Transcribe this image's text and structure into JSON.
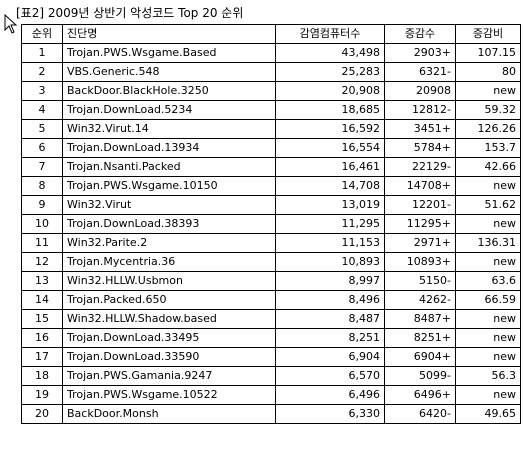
{
  "caption": "[표2] 2009년 상반기 악성코드 Top 20 순위",
  "table": {
    "headers": {
      "rank": "순위",
      "name": "진단명",
      "infected_pcs": "감염컴퓨터수",
      "change": "증감수",
      "ratio": "증감비"
    },
    "rows": [
      {
        "rank": "1",
        "name": "Trojan.PWS.Wsgame.Based",
        "infected_pcs": "43,498",
        "change": "2903+",
        "ratio": "107.15"
      },
      {
        "rank": "2",
        "name": "VBS.Generic.548",
        "infected_pcs": "25,283",
        "change": "6321-",
        "ratio": "80"
      },
      {
        "rank": "3",
        "name": "BackDoor.BlackHole.3250",
        "infected_pcs": "20,908",
        "change": "20908",
        "ratio": "new"
      },
      {
        "rank": "4",
        "name": "Trojan.DownLoad.5234",
        "infected_pcs": "18,685",
        "change": "12812-",
        "ratio": "59.32"
      },
      {
        "rank": "5",
        "name": "Win32.Virut.14",
        "infected_pcs": "16,592",
        "change": "3451+",
        "ratio": "126.26"
      },
      {
        "rank": "6",
        "name": "Trojan.DownLoad.13934",
        "infected_pcs": "16,554",
        "change": "5784+",
        "ratio": "153.7"
      },
      {
        "rank": "7",
        "name": "Trojan.Nsanti.Packed",
        "infected_pcs": "16,461",
        "change": "22129-",
        "ratio": "42.66"
      },
      {
        "rank": "8",
        "name": "Trojan.PWS.Wsgame.10150",
        "infected_pcs": "14,708",
        "change": "14708+",
        "ratio": "new"
      },
      {
        "rank": "9",
        "name": "Win32.Virut",
        "infected_pcs": "13,019",
        "change": "12201-",
        "ratio": "51.62"
      },
      {
        "rank": "10",
        "name": "Trojan.DownLoad.38393",
        "infected_pcs": "11,295",
        "change": "11295+",
        "ratio": "new"
      },
      {
        "rank": "11",
        "name": "Win32.Parite.2",
        "infected_pcs": "11,153",
        "change": "2971+",
        "ratio": "136.31"
      },
      {
        "rank": "12",
        "name": "Trojan.Mycentria.36",
        "infected_pcs": "10,893",
        "change": "10893+",
        "ratio": "new"
      },
      {
        "rank": "13",
        "name": "Win32.HLLW.Usbmon",
        "infected_pcs": "8,997",
        "change": "5150-",
        "ratio": "63.6"
      },
      {
        "rank": "14",
        "name": "Trojan.Packed.650",
        "infected_pcs": "8,496",
        "change": "4262-",
        "ratio": "66.59"
      },
      {
        "rank": "15",
        "name": "Win32.HLLW.Shadow.based",
        "infected_pcs": "8,487",
        "change": "8487+",
        "ratio": "new"
      },
      {
        "rank": "16",
        "name": "Trojan.DownLoad.33495",
        "infected_pcs": "8,251",
        "change": "8251+",
        "ratio": "new"
      },
      {
        "rank": "17",
        "name": "Trojan.DownLoad.33590",
        "infected_pcs": "6,904",
        "change": "6904+",
        "ratio": "new"
      },
      {
        "rank": "18",
        "name": "Trojan.PWS.Gamania.9247",
        "infected_pcs": "6,570",
        "change": "5099-",
        "ratio": "56.3"
      },
      {
        "rank": "19",
        "name": "Trojan.PWS.Wsgame.10522",
        "infected_pcs": "6,496",
        "change": "6496+",
        "ratio": "new"
      },
      {
        "rank": "20",
        "name": "BackDoor.Monsh",
        "infected_pcs": "6,330",
        "change": "6420-",
        "ratio": "49.65"
      }
    ]
  },
  "icons": {
    "cursor": "mouse-pointer-icon"
  }
}
